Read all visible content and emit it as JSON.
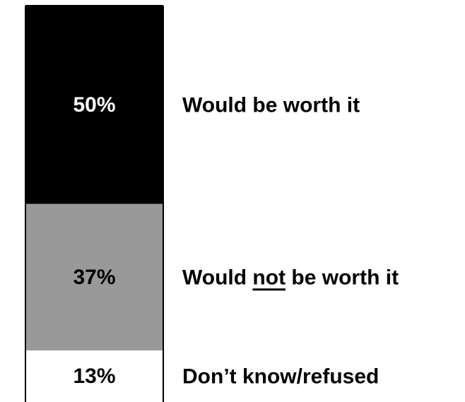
{
  "chart_data": {
    "type": "bar",
    "stacked": true,
    "ylim": [
      0,
      100
    ],
    "segments": [
      {
        "category": "Would be worth it",
        "value": 50,
        "value_label": "50%",
        "label_parts": [
          {
            "text": "Would be worth it",
            "underline": false
          }
        ],
        "fill": "#000000",
        "value_color": "#ffffff"
      },
      {
        "category": "Would not be worth it",
        "value": 37,
        "value_label": "37%",
        "label_parts": [
          {
            "text": "Would ",
            "underline": false
          },
          {
            "text": "not",
            "underline": true
          },
          {
            "text": " be worth it",
            "underline": false
          }
        ],
        "fill": "#999999",
        "value_color": "#000000"
      },
      {
        "category": "Don’t know/refused",
        "value": 13,
        "value_label": "13%",
        "label_parts": [
          {
            "text": "Don’t know/refused",
            "underline": false
          }
        ],
        "fill": "#ffffff",
        "value_color": "#000000"
      }
    ]
  }
}
